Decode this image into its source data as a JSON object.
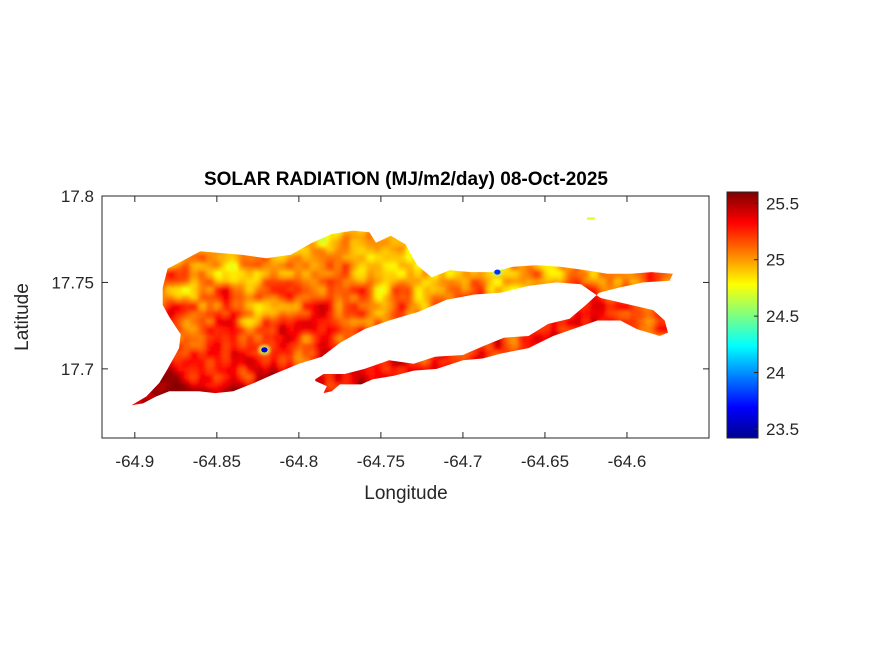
{
  "chart_data": {
    "type": "heatmap",
    "title": "SOLAR RADIATION (MJ/m2/day) 08-Oct-2025",
    "xlabel": "Longitude",
    "ylabel": "Latitude",
    "xlim": [
      -64.92,
      -64.55
    ],
    "ylim": [
      17.66,
      17.8
    ],
    "x_ticks": [
      -64.9,
      -64.85,
      -64.8,
      -64.75,
      -64.7,
      -64.65,
      -64.6
    ],
    "x_tick_labels": [
      "-64.9",
      "-64.85",
      "-64.8",
      "-64.75",
      "-64.7",
      "-64.65",
      "-64.6"
    ],
    "y_ticks": [
      17.7,
      17.75,
      17.8
    ],
    "y_tick_labels": [
      "17.7",
      "17.75",
      "17.8"
    ],
    "colorbar": {
      "colormap": "jet",
      "range": [
        23.42,
        25.6
      ],
      "ticks": [
        23.5,
        24,
        24.5,
        25,
        25.5
      ],
      "tick_labels": [
        "23.5",
        "24",
        "24.5",
        "25",
        "25.5"
      ]
    },
    "grid": false,
    "field_range": [
      23.5,
      25.6
    ],
    "notable_values": [
      {
        "lon": -64.821,
        "lat": 17.711,
        "value": 23.6
      },
      {
        "lon": -64.679,
        "lat": 17.756,
        "value": 23.8
      },
      {
        "lon": -64.622,
        "lat": 17.787,
        "value": 24.7
      }
    ],
    "island_outline": [
      [
        -64.902,
        17.679
      ],
      [
        -64.893,
        17.684
      ],
      [
        -64.885,
        17.692
      ],
      [
        -64.88,
        17.7
      ],
      [
        -64.873,
        17.712
      ],
      [
        -64.872,
        17.72
      ],
      [
        -64.879,
        17.73
      ],
      [
        -64.883,
        17.737
      ],
      [
        -64.883,
        17.747
      ],
      [
        -64.88,
        17.758
      ],
      [
        -64.87,
        17.763
      ],
      [
        -64.86,
        17.768
      ],
      [
        -64.848,
        17.767
      ],
      [
        -64.835,
        17.766
      ],
      [
        -64.82,
        17.764
      ],
      [
        -64.805,
        17.766
      ],
      [
        -64.792,
        17.773
      ],
      [
        -64.78,
        17.778
      ],
      [
        -64.767,
        17.78
      ],
      [
        -64.757,
        17.779
      ],
      [
        -64.753,
        17.773
      ],
      [
        -64.744,
        17.777
      ],
      [
        -64.735,
        17.772
      ],
      [
        -64.728,
        17.76
      ],
      [
        -64.719,
        17.753
      ],
      [
        -64.708,
        17.757
      ],
      [
        -64.695,
        17.756
      ],
      [
        -64.682,
        17.756
      ],
      [
        -64.67,
        17.759
      ],
      [
        -64.655,
        17.76
      ],
      [
        -64.64,
        17.759
      ],
      [
        -64.625,
        17.757
      ],
      [
        -64.612,
        17.755
      ],
      [
        -64.598,
        17.755
      ],
      [
        -64.585,
        17.756
      ],
      [
        -64.572,
        17.755
      ],
      [
        -64.574,
        17.751
      ],
      [
        -64.59,
        17.75
      ],
      [
        -64.605,
        17.747
      ],
      [
        -64.617,
        17.744
      ],
      [
        -64.625,
        17.737
      ],
      [
        -64.635,
        17.729
      ],
      [
        -64.648,
        17.726
      ],
      [
        -64.66,
        17.719
      ],
      [
        -64.675,
        17.718
      ],
      [
        -64.688,
        17.713
      ],
      [
        -64.7,
        17.708
      ],
      [
        -64.717,
        17.707
      ],
      [
        -64.73,
        17.703
      ],
      [
        -64.745,
        17.705
      ],
      [
        -64.76,
        17.7
      ],
      [
        -64.772,
        17.697
      ],
      [
        -64.785,
        17.697
      ],
      [
        -64.79,
        17.694
      ],
      [
        -64.79,
        17.693
      ],
      [
        -64.783,
        17.69
      ],
      [
        -64.785,
        17.686
      ],
      [
        -64.78,
        17.687
      ],
      [
        -64.775,
        17.691
      ],
      [
        -64.762,
        17.691
      ],
      [
        -64.755,
        17.694
      ],
      [
        -64.742,
        17.696
      ],
      [
        -64.73,
        17.699
      ],
      [
        -64.716,
        17.7
      ],
      [
        -64.7,
        17.705
      ],
      [
        -64.688,
        17.706
      ],
      [
        -64.676,
        17.709
      ],
      [
        -64.66,
        17.712
      ],
      [
        -64.645,
        17.719
      ],
      [
        -64.63,
        17.724
      ],
      [
        -64.618,
        17.728
      ],
      [
        -64.604,
        17.728
      ],
      [
        -64.594,
        17.723
      ],
      [
        -64.58,
        17.719
      ],
      [
        -64.575,
        17.721
      ],
      [
        -64.577,
        17.728
      ],
      [
        -64.584,
        17.734
      ],
      [
        -64.602,
        17.738
      ],
      [
        -64.616,
        17.741
      ],
      [
        -64.628,
        17.749
      ],
      [
        -64.643,
        17.75
      ],
      [
        -64.66,
        17.748
      ],
      [
        -64.677,
        17.744
      ],
      [
        -64.693,
        17.743
      ],
      [
        -64.71,
        17.74
      ],
      [
        -64.727,
        17.733
      ],
      [
        -64.745,
        17.728
      ],
      [
        -64.76,
        17.723
      ],
      [
        -64.775,
        17.715
      ],
      [
        -64.786,
        17.707
      ],
      [
        -64.8,
        17.703
      ],
      [
        -64.815,
        17.697
      ],
      [
        -64.827,
        17.692
      ],
      [
        -64.84,
        17.687
      ],
      [
        -64.851,
        17.686
      ],
      [
        -64.861,
        17.687
      ],
      [
        -64.871,
        17.687
      ],
      [
        -64.879,
        17.687
      ],
      [
        -64.887,
        17.684
      ],
      [
        -64.895,
        17.68
      ]
    ]
  }
}
